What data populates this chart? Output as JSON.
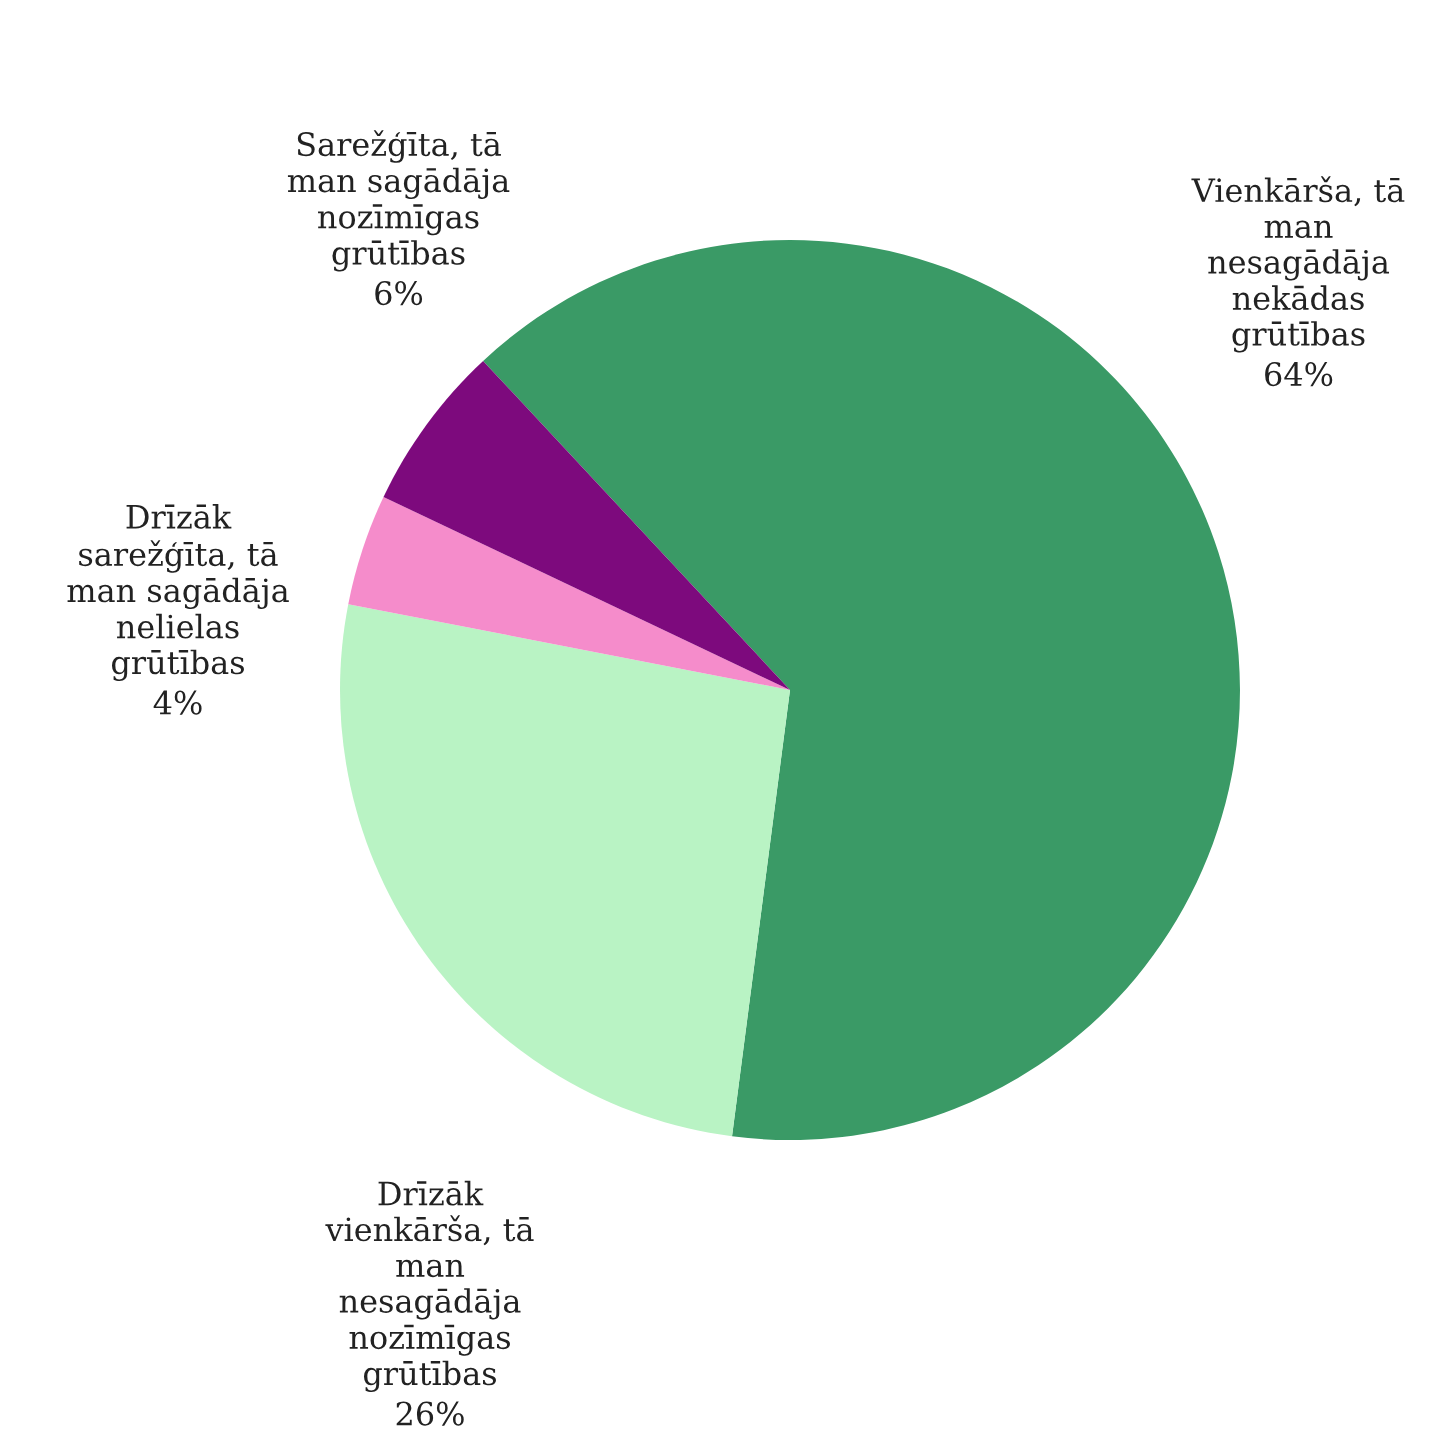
{
  "chart_data": {
    "type": "pie",
    "categories": [
      "Vienkārša, tā\nman\nnesagādāja\nnekādas\ngrūtības",
      "Drīzāk\nvienkārša, tā\nman\nnesagādāja\nnozīmīgas\ngrūtības",
      "Drīzāk\nsarežģīta, tā\nman sagādāja\nnelielas\ngrūtības",
      "Sarežģīta, tā\nman sagādāja\nnozīmīgas\ngrūtības"
    ],
    "values": [
      64,
      26,
      4,
      6
    ],
    "colors": [
      "#3a9a66",
      "#b9f3c4",
      "#f58ccb",
      "#7d0a7d"
    ],
    "value_labels": [
      "64%",
      "26%",
      "4%",
      "6%"
    ],
    "legend": false
  }
}
